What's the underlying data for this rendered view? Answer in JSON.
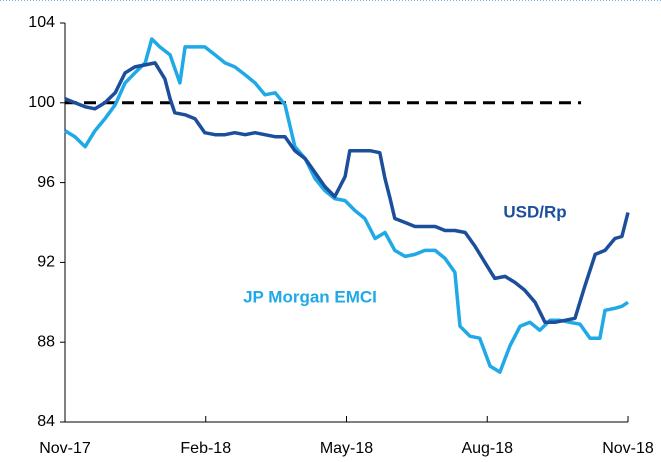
{
  "chart_data": {
    "type": "line",
    "xlim": [
      0,
      12
    ],
    "xticks": [
      {
        "value": 0,
        "label": "Nov-17"
      },
      {
        "value": 3,
        "label": "Feb-18"
      },
      {
        "value": 6,
        "label": "May-18"
      },
      {
        "value": 9,
        "label": "Aug-18"
      },
      {
        "value": 12,
        "label": "Nov-18"
      }
    ],
    "ylim": [
      84,
      104
    ],
    "yticks": [
      84,
      88,
      92,
      96,
      100,
      104
    ],
    "reference_line": {
      "value": 100,
      "xlim": [
        0,
        11
      ]
    },
    "series": [
      {
        "name": "USD/Rp",
        "color": "#1b4f9b",
        "x": [
          0,
          0.21,
          0.43,
          0.64,
          0.85,
          1.07,
          1.28,
          1.49,
          1.71,
          1.92,
          2.13,
          2.24,
          2.34,
          2.56,
          2.77,
          2.98,
          3.2,
          3.41,
          3.62,
          3.84,
          4.05,
          4.26,
          4.48,
          4.69,
          4.9,
          5.12,
          5.33,
          5.54,
          5.75,
          5.97,
          6.07,
          6.29,
          6.5,
          6.71,
          6.82,
          6.93,
          7.03,
          7.25,
          7.46,
          7.67,
          7.89,
          8.1,
          8.31,
          8.53,
          8.74,
          8.95,
          9.16,
          9.38,
          9.59,
          9.8,
          10.02,
          10.23,
          10.44,
          10.66,
          10.87,
          11.08,
          11.3,
          11.51,
          11.72,
          11.87,
          12
        ],
        "values": [
          100.2,
          100,
          99.8,
          99.7,
          100,
          100.5,
          101.5,
          101.8,
          101.9,
          102,
          101.2,
          100.2,
          99.5,
          99.4,
          99.2,
          98.5,
          98.4,
          98.4,
          98.5,
          98.4,
          98.5,
          98.4,
          98.3,
          98.3,
          97.6,
          97.2,
          96.5,
          95.8,
          95.3,
          96.3,
          97.6,
          97.6,
          97.6,
          97.5,
          96.2,
          95.2,
          94.2,
          94.0,
          93.8,
          93.8,
          93.8,
          93.6,
          93.6,
          93.5,
          92.8,
          92,
          91.2,
          91.3,
          91,
          90.6,
          90,
          89,
          89,
          89.1,
          89.2,
          90.8,
          92.4,
          92.6,
          93.2,
          93.3,
          94.5
        ]
      },
      {
        "name": "JP Morgan EMCI",
        "color": "#1fa9e6",
        "x": [
          0,
          0.21,
          0.43,
          0.64,
          0.85,
          1.07,
          1.28,
          1.49,
          1.71,
          1.85,
          2.02,
          2.24,
          2.45,
          2.56,
          2.77,
          2.98,
          3.2,
          3.41,
          3.62,
          3.84,
          4.05,
          4.26,
          4.48,
          4.69,
          4.9,
          5.12,
          5.33,
          5.54,
          5.75,
          5.97,
          6.18,
          6.39,
          6.61,
          6.82,
          7.03,
          7.25,
          7.46,
          7.67,
          7.89,
          8.1,
          8.31,
          8.42,
          8.63,
          8.84,
          9.06,
          9.27,
          9.48,
          9.7,
          9.91,
          10.12,
          10.34,
          10.55,
          10.76,
          10.98,
          11.19,
          11.4,
          11.51,
          11.72,
          11.87,
          12
        ],
        "values": [
          98.6,
          98.3,
          97.8,
          98.6,
          99.2,
          99.9,
          101,
          101.5,
          102,
          103.2,
          102.8,
          102.4,
          101,
          102.8,
          102.8,
          102.8,
          102.4,
          102,
          101.8,
          101.4,
          101,
          100.4,
          100.5,
          99.9,
          97.8,
          97.2,
          96.2,
          95.6,
          95.2,
          95.1,
          94.6,
          94.2,
          93.2,
          93.5,
          92.6,
          92.3,
          92.4,
          92.6,
          92.6,
          92.2,
          91.5,
          88.8,
          88.3,
          88.2,
          86.8,
          86.5,
          87.8,
          88.8,
          89,
          88.6,
          89.1,
          89.1,
          89,
          88.9,
          88.2,
          88.2,
          89.6,
          89.7,
          89.8,
          90
        ]
      }
    ]
  }
}
